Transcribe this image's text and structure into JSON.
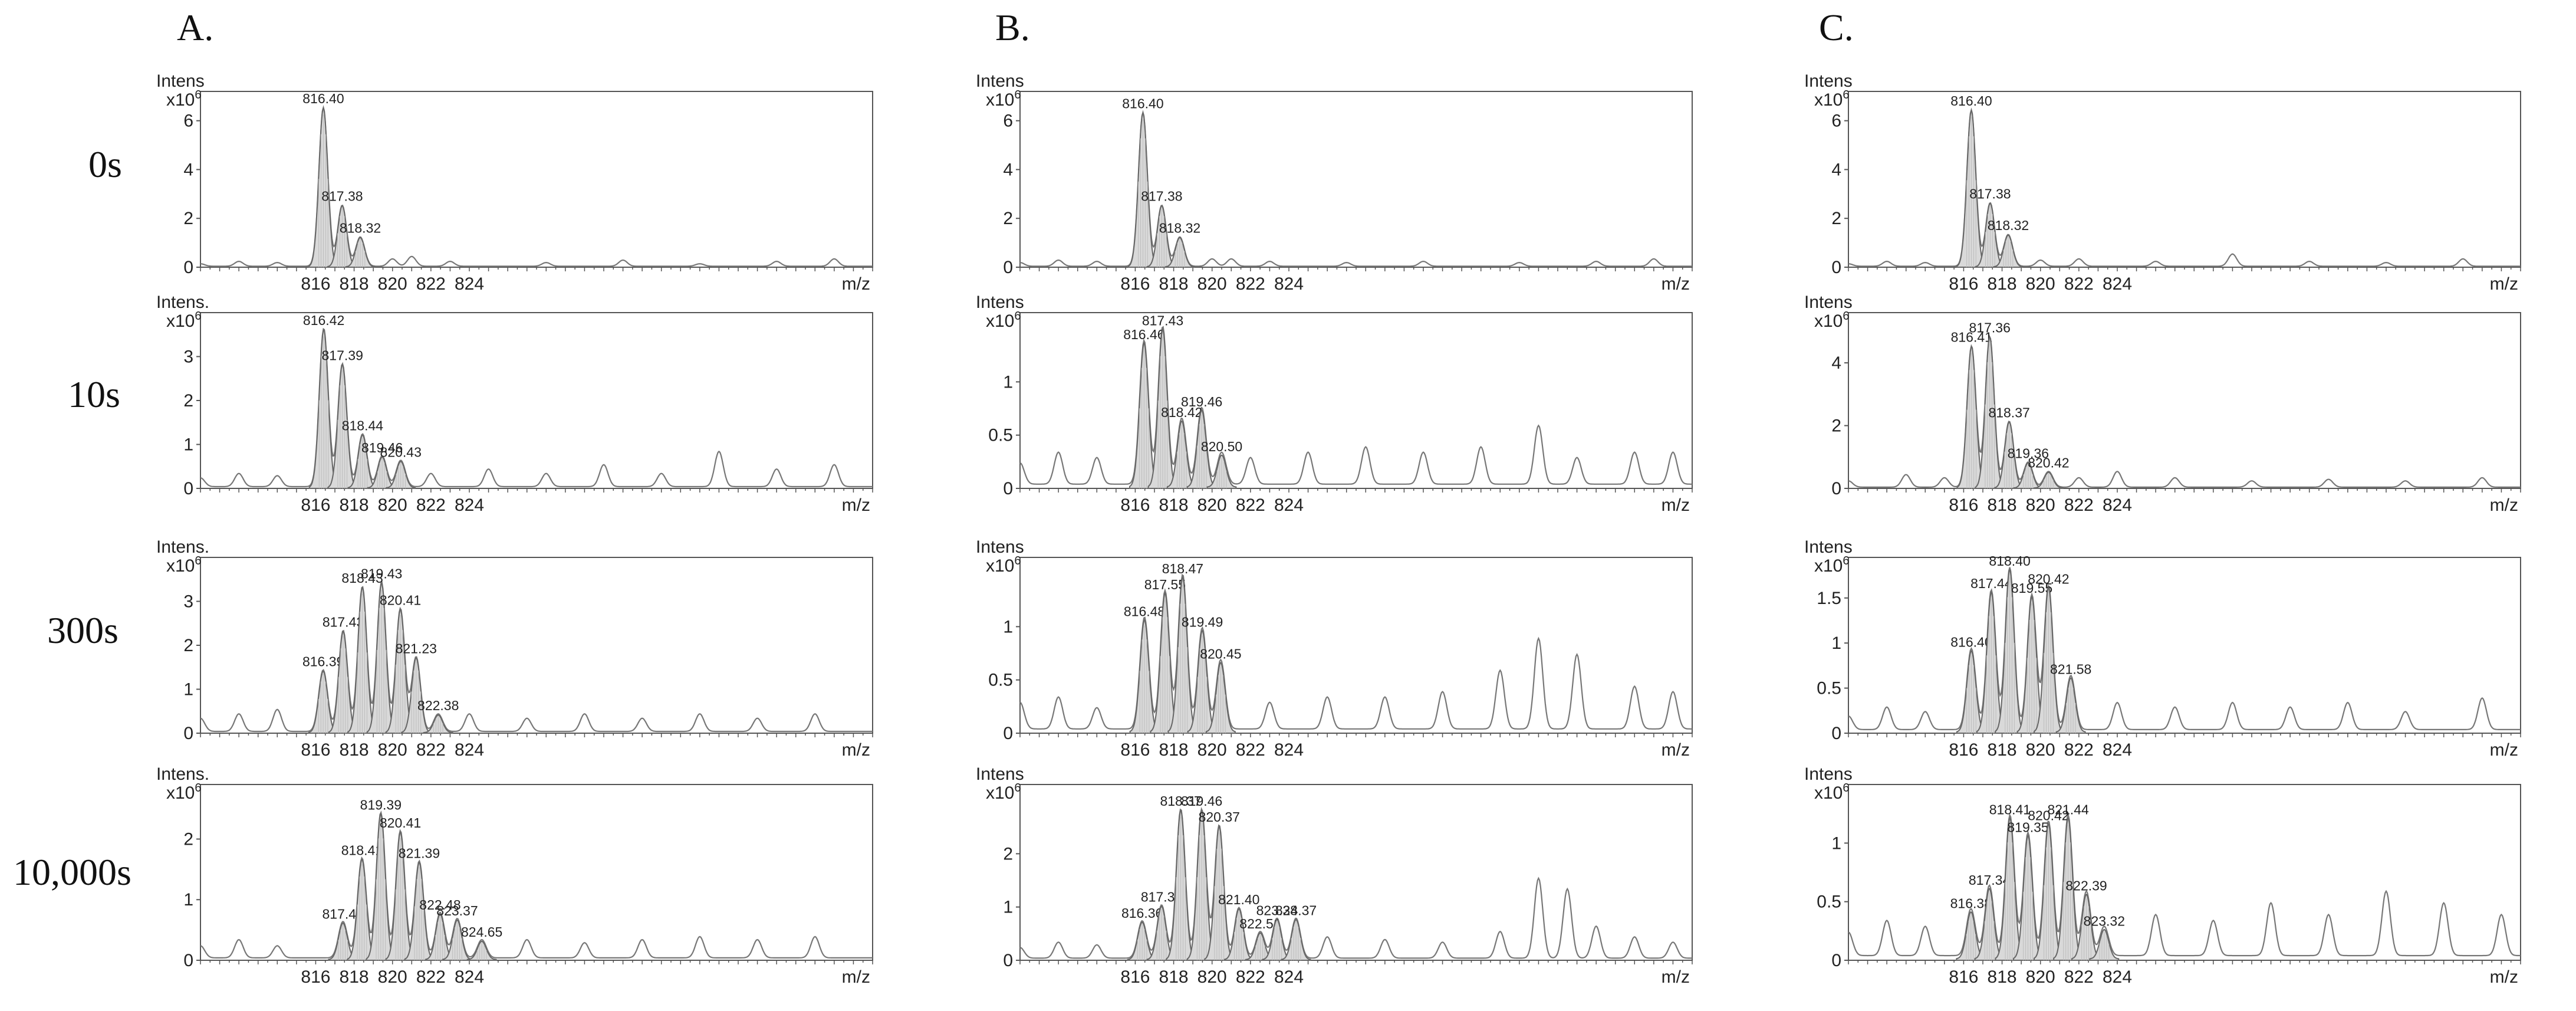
{
  "columns": [
    "A.",
    "B.",
    "C."
  ],
  "rows": [
    "0s",
    "10s",
    "300s",
    "10,000s"
  ],
  "colors": {
    "peak_fill": "#d9d9d9",
    "trace": "#777777",
    "frame": "#555555"
  },
  "chart_data": [
    {
      "type": "line",
      "col": 0,
      "row": 0,
      "ylabel": "Intens",
      "yscale": "x10",
      "yexp": "6",
      "xunit": "m/z",
      "xlim": [
        810,
        845
      ],
      "ylim": [
        0,
        7.2
      ],
      "yticks": [
        "0",
        "2",
        "4",
        "6"
      ],
      "xticks": [
        "816",
        "818",
        "820",
        "822",
        "824"
      ],
      "peaks": [
        {
          "x": 816.4,
          "y": 6.5,
          "label": "816.40"
        },
        {
          "x": 817.38,
          "y": 2.5,
          "label": "817.38"
        },
        {
          "x": 818.32,
          "y": 1.2,
          "label": "818.32"
        }
      ],
      "noise": [
        [
          810,
          0.1
        ],
        [
          812,
          0.2
        ],
        [
          814,
          0.15
        ],
        [
          820,
          0.3
        ],
        [
          821,
          0.4
        ],
        [
          823,
          0.2
        ],
        [
          828,
          0.15
        ],
        [
          832,
          0.25
        ],
        [
          836,
          0.1
        ],
        [
          840,
          0.2
        ],
        [
          843,
          0.3
        ]
      ]
    },
    {
      "type": "line",
      "col": 1,
      "row": 0,
      "ylabel": "Intens",
      "yscale": "x10",
      "yexp": "6",
      "xunit": "m/z",
      "xlim": [
        810,
        845
      ],
      "ylim": [
        0,
        7.2
      ],
      "yticks": [
        "0",
        "2",
        "4",
        "6"
      ],
      "xticks": [
        "816",
        "818",
        "820",
        "822",
        "824"
      ],
      "peaks": [
        {
          "x": 816.4,
          "y": 6.3,
          "label": "816.40"
        },
        {
          "x": 817.38,
          "y": 2.5,
          "label": "817.38"
        },
        {
          "x": 818.32,
          "y": 1.2,
          "label": "818.32"
        }
      ],
      "noise": [
        [
          810,
          0.15
        ],
        [
          812,
          0.25
        ],
        [
          814,
          0.2
        ],
        [
          820,
          0.3
        ],
        [
          821,
          0.3
        ],
        [
          823,
          0.2
        ],
        [
          827,
          0.15
        ],
        [
          831,
          0.2
        ],
        [
          836,
          0.15
        ],
        [
          840,
          0.2
        ],
        [
          843,
          0.3
        ]
      ]
    },
    {
      "type": "line",
      "col": 2,
      "row": 0,
      "ylabel": "Intens",
      "yscale": "x10",
      "yexp": "6",
      "xunit": "m/z",
      "xlim": [
        810,
        845
      ],
      "ylim": [
        0,
        7.2
      ],
      "yticks": [
        "0",
        "2",
        "4",
        "6"
      ],
      "xticks": [
        "816",
        "818",
        "820",
        "822",
        "824"
      ],
      "peaks": [
        {
          "x": 816.4,
          "y": 6.4,
          "label": "816.40"
        },
        {
          "x": 817.38,
          "y": 2.6,
          "label": "817.38"
        },
        {
          "x": 818.32,
          "y": 1.3,
          "label": "818.32"
        }
      ],
      "noise": [
        [
          810,
          0.1
        ],
        [
          812,
          0.2
        ],
        [
          814,
          0.15
        ],
        [
          820,
          0.25
        ],
        [
          822,
          0.3
        ],
        [
          826,
          0.2
        ],
        [
          830,
          0.5
        ],
        [
          834,
          0.2
        ],
        [
          838,
          0.15
        ],
        [
          842,
          0.3
        ]
      ]
    },
    {
      "type": "line",
      "col": 0,
      "row": 1,
      "ylabel": "Intens.",
      "yscale": "x10",
      "yexp": "6",
      "xunit": "m/z",
      "xlim": [
        810,
        845
      ],
      "ylim": [
        0,
        4.0
      ],
      "yticks": [
        "0",
        "1",
        "2",
        "3"
      ],
      "xticks": [
        "816",
        "818",
        "820",
        "822",
        "824"
      ],
      "peaks": [
        {
          "x": 816.42,
          "y": 3.6,
          "label": "816.42"
        },
        {
          "x": 817.39,
          "y": 2.8,
          "label": "817.39"
        },
        {
          "x": 818.44,
          "y": 1.2,
          "label": "818.44"
        },
        {
          "x": 819.46,
          "y": 0.7,
          "label": "819.46"
        },
        {
          "x": 820.43,
          "y": 0.6,
          "label": "820.43"
        }
      ],
      "noise": [
        [
          810,
          0.2
        ],
        [
          812,
          0.3
        ],
        [
          814,
          0.25
        ],
        [
          822,
          0.3
        ],
        [
          825,
          0.4
        ],
        [
          828,
          0.3
        ],
        [
          831,
          0.5
        ],
        [
          834,
          0.3
        ],
        [
          837,
          0.8
        ],
        [
          840,
          0.4
        ],
        [
          843,
          0.5
        ]
      ]
    },
    {
      "type": "line",
      "col": 1,
      "row": 1,
      "ylabel": "Intens",
      "yscale": "x10",
      "yexp": "6",
      "xunit": "m/z",
      "xlim": [
        810,
        845
      ],
      "ylim": [
        0,
        1.65
      ],
      "yticks": [
        "0",
        "0.5",
        "1"
      ],
      "xticks": [
        "816",
        "818",
        "820",
        "822",
        "824"
      ],
      "peaks": [
        {
          "x": 816.46,
          "y": 1.35,
          "label": "816.46"
        },
        {
          "x": 817.43,
          "y": 1.48,
          "label": "817.43"
        },
        {
          "x": 818.42,
          "y": 0.62,
          "label": "818.42"
        },
        {
          "x": 819.46,
          "y": 0.72,
          "label": "819.46"
        },
        {
          "x": 820.5,
          "y": 0.3,
          "label": "820.50"
        }
      ],
      "noise": [
        [
          810,
          0.2
        ],
        [
          812,
          0.3
        ],
        [
          814,
          0.25
        ],
        [
          822,
          0.25
        ],
        [
          825,
          0.3
        ],
        [
          828,
          0.35
        ],
        [
          831,
          0.3
        ],
        [
          834,
          0.35
        ],
        [
          837,
          0.55
        ],
        [
          839,
          0.25
        ],
        [
          842,
          0.3
        ],
        [
          844,
          0.3
        ]
      ]
    },
    {
      "type": "line",
      "col": 2,
      "row": 1,
      "ylabel": "Intens",
      "yscale": "x10",
      "yexp": "6",
      "xunit": "m/z",
      "xlim": [
        810,
        845
      ],
      "ylim": [
        0,
        5.6
      ],
      "yticks": [
        "0",
        "2",
        "4"
      ],
      "xticks": [
        "816",
        "818",
        "820",
        "822",
        "824"
      ],
      "peaks": [
        {
          "x": 816.41,
          "y": 4.5,
          "label": "816.41"
        },
        {
          "x": 817.36,
          "y": 4.8,
          "label": "817.36"
        },
        {
          "x": 818.37,
          "y": 2.1,
          "label": "818.37"
        },
        {
          "x": 819.36,
          "y": 0.8,
          "label": "819.36"
        },
        {
          "x": 820.42,
          "y": 0.5,
          "label": "820.42"
        }
      ],
      "noise": [
        [
          810,
          0.2
        ],
        [
          813,
          0.4
        ],
        [
          815,
          0.3
        ],
        [
          822,
          0.3
        ],
        [
          824,
          0.5
        ],
        [
          827,
          0.3
        ],
        [
          831,
          0.2
        ],
        [
          835,
          0.25
        ],
        [
          839,
          0.2
        ],
        [
          843,
          0.3
        ]
      ]
    },
    {
      "type": "line",
      "col": 0,
      "row": 2,
      "ylabel": "Intens.",
      "yscale": "x10",
      "yexp": "6",
      "xunit": "m/z",
      "xlim": [
        810,
        845
      ],
      "ylim": [
        0,
        4.0
      ],
      "yticks": [
        "0",
        "1",
        "2",
        "3"
      ],
      "xticks": [
        "816",
        "818",
        "820",
        "822",
        "824"
      ],
      "peaks": [
        {
          "x": 816.39,
          "y": 1.4,
          "label": "816.39"
        },
        {
          "x": 817.43,
          "y": 2.3,
          "label": "817.43"
        },
        {
          "x": 818.43,
          "y": 3.3,
          "label": "818.43"
        },
        {
          "x": 819.43,
          "y": 3.4,
          "label": "819.43"
        },
        {
          "x": 820.41,
          "y": 2.8,
          "label": "820.41"
        },
        {
          "x": 821.23,
          "y": 1.7,
          "label": "821.23"
        },
        {
          "x": 822.38,
          "y": 0.4,
          "label": "822.38"
        }
      ],
      "noise": [
        [
          810,
          0.3
        ],
        [
          812,
          0.4
        ],
        [
          814,
          0.5
        ],
        [
          824,
          0.4
        ],
        [
          827,
          0.3
        ],
        [
          830,
          0.4
        ],
        [
          833,
          0.3
        ],
        [
          836,
          0.4
        ],
        [
          839,
          0.3
        ],
        [
          842,
          0.4
        ]
      ]
    },
    {
      "type": "line",
      "col": 1,
      "row": 2,
      "ylabel": "Intens",
      "yscale": "x10",
      "yexp": "6",
      "xunit": "m/z",
      "xlim": [
        810,
        845
      ],
      "ylim": [
        0,
        1.65
      ],
      "yticks": [
        "0",
        "0.5",
        "1"
      ],
      "xticks": [
        "816",
        "818",
        "820",
        "822",
        "824"
      ],
      "peaks": [
        {
          "x": 816.48,
          "y": 1.05,
          "label": "816.48"
        },
        {
          "x": 817.55,
          "y": 1.3,
          "label": "817.55"
        },
        {
          "x": 818.47,
          "y": 1.45,
          "label": "818.47"
        },
        {
          "x": 819.49,
          "y": 0.95,
          "label": "819.49"
        },
        {
          "x": 820.45,
          "y": 0.65,
          "label": "820.45"
        }
      ],
      "noise": [
        [
          810,
          0.25
        ],
        [
          812,
          0.3
        ],
        [
          814,
          0.2
        ],
        [
          823,
          0.25
        ],
        [
          826,
          0.3
        ],
        [
          829,
          0.3
        ],
        [
          832,
          0.35
        ],
        [
          835,
          0.55
        ],
        [
          837,
          0.85
        ],
        [
          839,
          0.7
        ],
        [
          842,
          0.4
        ],
        [
          844,
          0.35
        ]
      ]
    },
    {
      "type": "line",
      "col": 2,
      "row": 2,
      "ylabel": "Intens",
      "yscale": "x10",
      "yexp": "6",
      "xunit": "m/z",
      "xlim": [
        810,
        845
      ],
      "ylim": [
        0,
        1.95
      ],
      "yticks": [
        "0",
        "0.5",
        "1",
        "1.5"
      ],
      "xticks": [
        "816",
        "818",
        "820",
        "822",
        "824"
      ],
      "peaks": [
        {
          "x": 816.4,
          "y": 0.9,
          "label": "816.40"
        },
        {
          "x": 817.44,
          "y": 1.55,
          "label": "817.44"
        },
        {
          "x": 818.4,
          "y": 1.8,
          "label": "818.40"
        },
        {
          "x": 819.55,
          "y": 1.5,
          "label": "819.55"
        },
        {
          "x": 820.42,
          "y": 1.6,
          "label": "820.42"
        },
        {
          "x": 821.58,
          "y": 0.6,
          "label": "821.58"
        }
      ],
      "noise": [
        [
          810,
          0.15
        ],
        [
          812,
          0.25
        ],
        [
          814,
          0.2
        ],
        [
          824,
          0.3
        ],
        [
          827,
          0.25
        ],
        [
          830,
          0.3
        ],
        [
          833,
          0.25
        ],
        [
          836,
          0.3
        ],
        [
          839,
          0.2
        ],
        [
          843,
          0.35
        ]
      ]
    },
    {
      "type": "line",
      "col": 0,
      "row": 3,
      "ylabel": "Intens.",
      "yscale": "x10",
      "yexp": "6",
      "xunit": "m/z",
      "xlim": [
        810,
        845
      ],
      "ylim": [
        0,
        2.9
      ],
      "yticks": [
        "0",
        "1",
        "2"
      ],
      "xticks": [
        "816",
        "818",
        "820",
        "822",
        "824"
      ],
      "peaks": [
        {
          "x": 817.42,
          "y": 0.6,
          "label": "817.42"
        },
        {
          "x": 818.41,
          "y": 1.65,
          "label": "818.41"
        },
        {
          "x": 819.39,
          "y": 2.4,
          "label": "819.39"
        },
        {
          "x": 820.41,
          "y": 2.1,
          "label": "820.41"
        },
        {
          "x": 821.39,
          "y": 1.6,
          "label": "821.39"
        },
        {
          "x": 822.48,
          "y": 0.75,
          "label": "822.48"
        },
        {
          "x": 823.37,
          "y": 0.65,
          "label": "823.37"
        },
        {
          "x": 824.65,
          "y": 0.3,
          "label": "824.65"
        }
      ],
      "noise": [
        [
          810,
          0.2
        ],
        [
          812,
          0.3
        ],
        [
          814,
          0.2
        ],
        [
          827,
          0.3
        ],
        [
          830,
          0.25
        ],
        [
          833,
          0.3
        ],
        [
          836,
          0.35
        ],
        [
          839,
          0.3
        ],
        [
          842,
          0.35
        ]
      ]
    },
    {
      "type": "line",
      "col": 1,
      "row": 3,
      "ylabel": "Intens",
      "yscale": "x10",
      "yexp": "6",
      "xunit": "m/z",
      "xlim": [
        810,
        845
      ],
      "ylim": [
        0,
        3.3
      ],
      "yticks": [
        "0",
        "1",
        "2"
      ],
      "xticks": [
        "816",
        "818",
        "820",
        "822",
        "824"
      ],
      "peaks": [
        {
          "x": 816.36,
          "y": 0.7,
          "label": "816.36"
        },
        {
          "x": 817.37,
          "y": 1.0,
          "label": "817.37"
        },
        {
          "x": 818.37,
          "y": 2.8,
          "label": "818.37"
        },
        {
          "x": 819.46,
          "y": 2.8,
          "label": "819.46"
        },
        {
          "x": 820.37,
          "y": 2.5,
          "label": "820.37"
        },
        {
          "x": 821.4,
          "y": 0.95,
          "label": "821.40"
        },
        {
          "x": 822.51,
          "y": 0.5,
          "label": "822.51"
        },
        {
          "x": 823.38,
          "y": 0.75,
          "label": "823.38"
        },
        {
          "x": 824.37,
          "y": 0.75,
          "label": "824.37"
        }
      ],
      "noise": [
        [
          810,
          0.2
        ],
        [
          812,
          0.3
        ],
        [
          814,
          0.25
        ],
        [
          826,
          0.4
        ],
        [
          829,
          0.35
        ],
        [
          832,
          0.3
        ],
        [
          835,
          0.5
        ],
        [
          837,
          1.5
        ],
        [
          838.5,
          1.3
        ],
        [
          840,
          0.6
        ],
        [
          842,
          0.4
        ],
        [
          844,
          0.3
        ]
      ]
    },
    {
      "type": "line",
      "col": 2,
      "row": 3,
      "ylabel": "Intens",
      "yscale": "x10",
      "yexp": "6",
      "xunit": "m/z",
      "xlim": [
        810,
        845
      ],
      "ylim": [
        0,
        1.5
      ],
      "yticks": [
        "0",
        "0.5",
        "1"
      ],
      "xticks": [
        "816",
        "818",
        "820",
        "822",
        "824"
      ],
      "peaks": [
        {
          "x": 816.38,
          "y": 0.4,
          "label": "816.38"
        },
        {
          "x": 817.34,
          "y": 0.6,
          "label": "817.34"
        },
        {
          "x": 818.41,
          "y": 1.2,
          "label": "818.41"
        },
        {
          "x": 819.35,
          "y": 1.05,
          "label": "819.35"
        },
        {
          "x": 820.42,
          "y": 1.15,
          "label": "820.42"
        },
        {
          "x": 821.44,
          "y": 1.2,
          "label": "821.44"
        },
        {
          "x": 822.39,
          "y": 0.55,
          "label": "822.39"
        },
        {
          "x": 823.32,
          "y": 0.25,
          "label": "823.32"
        }
      ],
      "noise": [
        [
          810,
          0.2
        ],
        [
          812,
          0.3
        ],
        [
          814,
          0.25
        ],
        [
          826,
          0.35
        ],
        [
          829,
          0.3
        ],
        [
          832,
          0.45
        ],
        [
          835,
          0.35
        ],
        [
          838,
          0.55
        ],
        [
          841,
          0.45
        ],
        [
          844,
          0.35
        ]
      ]
    }
  ]
}
